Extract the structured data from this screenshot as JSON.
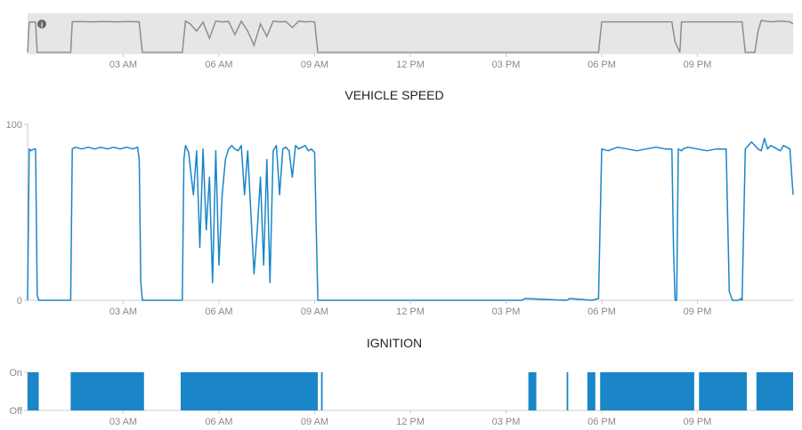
{
  "x_axis": {
    "unit": "hours",
    "range": [
      0,
      24
    ],
    "ticks": [
      {
        "label": "03 AM",
        "value": 3
      },
      {
        "label": "06 AM",
        "value": 6
      },
      {
        "label": "09 AM",
        "value": 9
      },
      {
        "label": "12 PM",
        "value": 12
      },
      {
        "label": "03 PM",
        "value": 15
      },
      {
        "label": "06 PM",
        "value": 18
      },
      {
        "label": "09 PM",
        "value": 21
      }
    ]
  },
  "colors": {
    "series": "#1a86c8",
    "navigator_line": "#8e8e8e",
    "navigator_bg": "#e4e6e8",
    "axis": "#cccccc"
  },
  "icons": {
    "navigator_info": "info-icon"
  },
  "chart_data": [
    {
      "id": "navigator",
      "type": "line",
      "title": "",
      "xlabel": "",
      "ylabel": "",
      "xlim": [
        0,
        24
      ],
      "ylim": [
        0,
        100
      ],
      "grid": false,
      "x": [
        0,
        0.05,
        0.15,
        0.25,
        0.3,
        0.35,
        1.35,
        1.4,
        1.6,
        2.0,
        2.4,
        2.8,
        3.2,
        3.5,
        3.55,
        3.6,
        4.85,
        4.95,
        5.1,
        5.3,
        5.5,
        5.7,
        5.9,
        6.1,
        6.3,
        6.5,
        6.7,
        6.9,
        7.1,
        7.3,
        7.5,
        7.7,
        7.9,
        8.1,
        8.3,
        8.5,
        8.7,
        8.9,
        9.0,
        9.1,
        17.9,
        18.0,
        18.5,
        19.0,
        19.5,
        20.0,
        20.2,
        20.3,
        20.45,
        20.5,
        20.6,
        21.0,
        21.5,
        22.0,
        22.4,
        22.5,
        22.8,
        22.9,
        23.0,
        23.3,
        23.6,
        23.9,
        24.0
      ],
      "values": [
        0,
        85,
        86,
        85,
        0,
        0,
        0,
        86,
        87,
        86,
        87,
        86,
        87,
        86,
        40,
        0,
        0,
        88,
        80,
        60,
        85,
        40,
        88,
        86,
        87,
        50,
        88,
        60,
        20,
        80,
        45,
        88,
        86,
        87,
        70,
        88,
        86,
        87,
        85,
        0,
        0,
        86,
        86,
        86,
        86,
        86,
        86,
        30,
        0,
        86,
        86,
        86,
        86,
        86,
        86,
        0,
        0,
        60,
        90,
        86,
        88,
        86,
        80
      ]
    },
    {
      "id": "vehicle-speed",
      "type": "line",
      "title": "VEHICLE SPEED",
      "xlabel": "",
      "ylabel": "",
      "xlim": [
        0,
        24
      ],
      "ylim": [
        0,
        100
      ],
      "y_ticks": [
        0,
        100
      ],
      "grid": false,
      "x": [
        0,
        0.05,
        0.1,
        0.2,
        0.25,
        0.3,
        0.35,
        1.35,
        1.4,
        1.5,
        1.7,
        1.9,
        2.1,
        2.3,
        2.5,
        2.7,
        2.9,
        3.1,
        3.3,
        3.45,
        3.5,
        3.55,
        3.6,
        4.85,
        4.9,
        4.95,
        5.05,
        5.1,
        5.2,
        5.3,
        5.4,
        5.5,
        5.6,
        5.7,
        5.8,
        5.9,
        6.0,
        6.1,
        6.2,
        6.3,
        6.4,
        6.5,
        6.6,
        6.7,
        6.8,
        6.9,
        7.0,
        7.1,
        7.2,
        7.3,
        7.4,
        7.5,
        7.6,
        7.7,
        7.8,
        7.9,
        8.0,
        8.1,
        8.2,
        8.3,
        8.4,
        8.5,
        8.6,
        8.7,
        8.8,
        8.9,
        9.0,
        9.05,
        9.1,
        15.5,
        15.6,
        16.9,
        17.0,
        17.7,
        17.9,
        18.0,
        18.2,
        18.5,
        18.8,
        19.1,
        19.4,
        19.7,
        20.0,
        20.2,
        20.25,
        20.3,
        20.35,
        20.4,
        20.5,
        20.55,
        20.7,
        21.0,
        21.3,
        21.6,
        21.9,
        22.0,
        22.1,
        22.3,
        22.35,
        22.4,
        22.5,
        22.7,
        22.8,
        22.9,
        23.0,
        23.1,
        23.2,
        23.3,
        23.4,
        23.5,
        23.6,
        23.7,
        23.8,
        23.9,
        24.0
      ],
      "values": [
        0,
        86,
        85,
        86,
        86,
        3,
        0,
        0,
        86,
        87,
        86,
        87,
        86,
        87,
        86,
        87,
        86,
        87,
        86,
        87,
        80,
        10,
        0,
        0,
        80,
        88,
        84,
        75,
        60,
        85,
        30,
        86,
        40,
        70,
        10,
        85,
        20,
        60,
        80,
        86,
        88,
        86,
        85,
        88,
        60,
        85,
        50,
        15,
        40,
        70,
        20,
        80,
        10,
        85,
        88,
        60,
        86,
        87,
        85,
        70,
        88,
        86,
        87,
        88,
        85,
        86,
        84,
        40,
        0,
        0,
        1,
        0,
        1,
        0,
        1,
        86,
        85,
        87,
        86,
        85,
        86,
        87,
        86,
        86,
        30,
        0,
        0,
        86,
        85,
        86,
        87,
        86,
        85,
        86,
        86,
        5,
        0,
        0,
        1,
        0,
        86,
        90,
        88,
        86,
        85,
        92,
        86,
        88,
        87,
        86,
        85,
        88,
        87,
        86,
        60
      ],
      "color": "#1a86c8"
    },
    {
      "id": "ignition",
      "type": "area",
      "title": "IGNITION",
      "xlabel": "",
      "ylabel": "",
      "xlim": [
        0,
        24
      ],
      "y_tick_labels": [
        "On",
        "Off"
      ],
      "grid": false,
      "segments": [
        {
          "start": 0.0,
          "end": 0.35
        },
        {
          "start": 1.35,
          "end": 3.65
        },
        {
          "start": 4.8,
          "end": 9.1
        },
        {
          "start": 9.2,
          "end": 9.25
        },
        {
          "start": 15.7,
          "end": 15.95
        },
        {
          "start": 16.9,
          "end": 16.95
        },
        {
          "start": 17.55,
          "end": 17.8
        },
        {
          "start": 17.95,
          "end": 20.9
        },
        {
          "start": 21.05,
          "end": 22.55
        },
        {
          "start": 22.85,
          "end": 24.0
        }
      ],
      "color": "#1a86c8"
    }
  ]
}
